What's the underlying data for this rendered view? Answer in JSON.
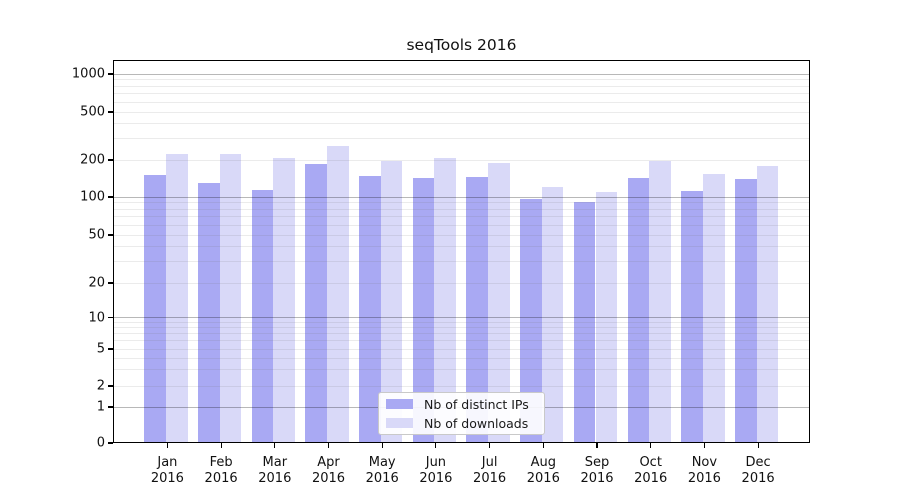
{
  "title": "seqTools 2016",
  "colors": {
    "distinct_ips_bar": "#a9a9f3",
    "downloads_bar": "#d9d9f8"
  },
  "y_axis": {
    "ticks": [
      {
        "value": 1000,
        "label": "1000"
      },
      {
        "value": 500,
        "label": "500"
      },
      {
        "value": 200,
        "label": "200"
      },
      {
        "value": 100,
        "label": "100"
      },
      {
        "value": 50,
        "label": "50"
      },
      {
        "value": 20,
        "label": "20"
      },
      {
        "value": 10,
        "label": "10"
      },
      {
        "value": 5,
        "label": "5"
      },
      {
        "value": 2,
        "label": "2"
      },
      {
        "value": 1,
        "label": "1"
      },
      {
        "value": 0,
        "label": "0"
      }
    ]
  },
  "x_axis": {
    "year_line": "2016",
    "months": [
      "Jan",
      "Feb",
      "Mar",
      "Apr",
      "May",
      "Jun",
      "Jul",
      "Aug",
      "Sep",
      "Oct",
      "Nov",
      "Dec"
    ]
  },
  "legend": {
    "items": [
      {
        "label": "Nb of distinct IPs",
        "color": "#a9a9f3"
      },
      {
        "label": "Nb of downloads",
        "color": "#d9d9f8"
      }
    ]
  },
  "chart_data": {
    "type": "bar",
    "title": "seqTools 2016",
    "categories": [
      "Jan 2016",
      "Feb 2016",
      "Mar 2016",
      "Apr 2016",
      "May 2016",
      "Jun 2016",
      "Jul 2016",
      "Aug 2016",
      "Sep 2016",
      "Oct 2016",
      "Nov 2016",
      "Dec 2016"
    ],
    "series": [
      {
        "name": "Nb of distinct IPs",
        "color": "#a9a9f3",
        "values": [
          150,
          129,
          115,
          185,
          148,
          144,
          145,
          97,
          92,
          143,
          112,
          139
        ]
      },
      {
        "name": "Nb of downloads",
        "color": "#d9d9f8",
        "values": [
          224,
          224,
          206,
          260,
          195,
          206,
          188,
          121,
          109,
          197,
          153,
          179
        ]
      }
    ],
    "xlabel": "",
    "ylabel": "",
    "yscale": "symlog",
    "y_ticks": [
      0,
      1,
      2,
      5,
      10,
      20,
      50,
      100,
      200,
      500,
      1000
    ],
    "ylim": [
      0,
      1200
    ],
    "grid": true,
    "legend_position": "lower center"
  }
}
